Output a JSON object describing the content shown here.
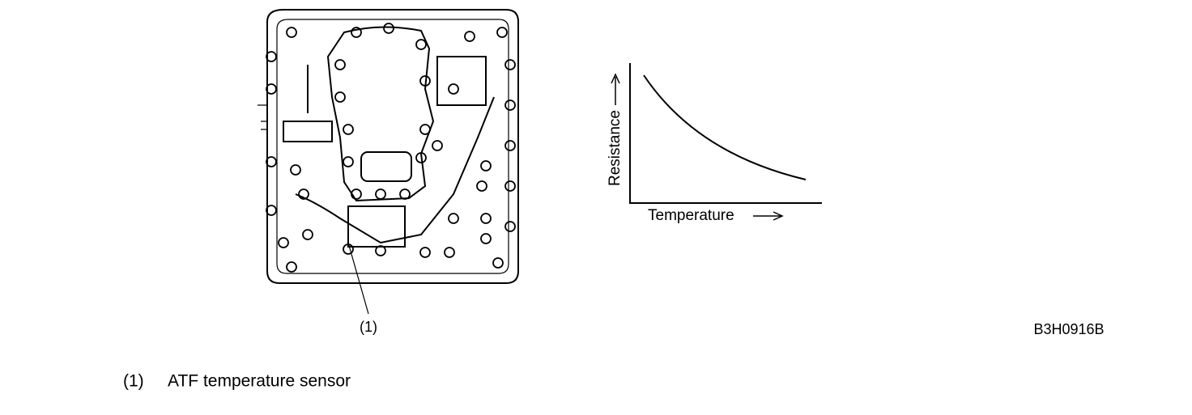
{
  "illustration": {
    "callout": "(1)",
    "code": "B3H0916B"
  },
  "graph": {
    "y_label": "Resistance",
    "x_label": "Temperature"
  },
  "legend": [
    {
      "number": "(1)",
      "label": "ATF temperature sensor"
    }
  ]
}
